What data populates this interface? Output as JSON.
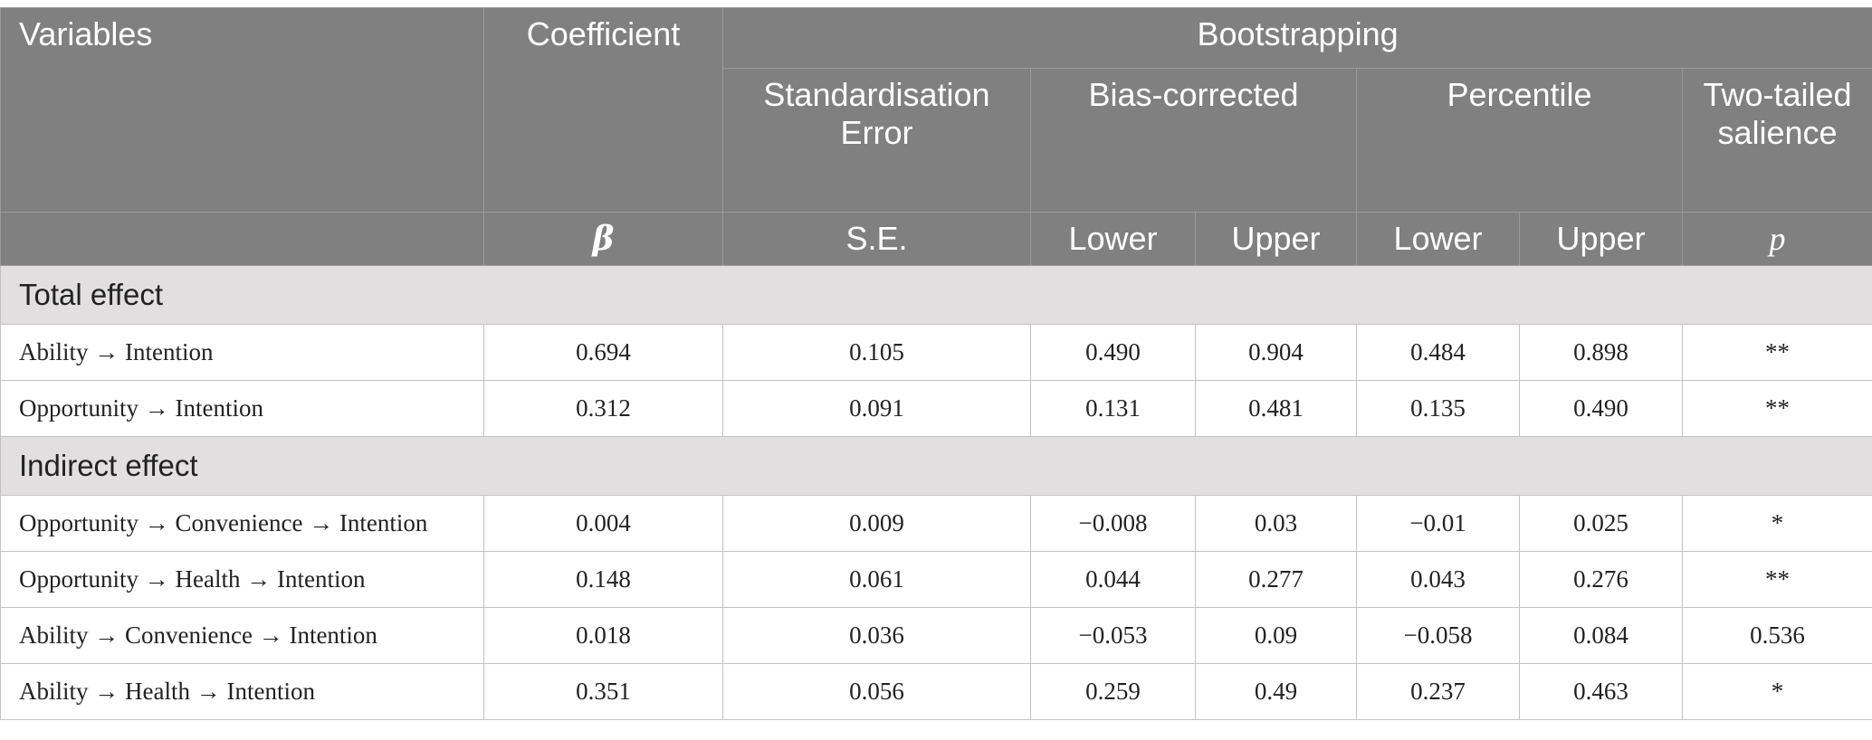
{
  "header": {
    "variables": "Variables",
    "coefficient": "Coefficient",
    "bootstrapping": "Bootstrapping",
    "std_error": "Standardisation Error",
    "bias_corrected": "Bias-corrected",
    "percentile": "Percentile",
    "two_tailed": "Two-tailed salience",
    "beta": "β",
    "se": "S.E.",
    "bc_lower": "Lower",
    "bc_upper": "Upper",
    "pc_lower": "Lower",
    "pc_upper": "Upper",
    "p": "p"
  },
  "sections": [
    {
      "title": "Total effect",
      "rows": [
        [
          "Ability → Intention",
          "0.694",
          "0.105",
          "0.490",
          "0.904",
          "0.484",
          "0.898",
          "**"
        ],
        [
          "Opportunity → Intention",
          "0.312",
          "0.091",
          "0.131",
          "0.481",
          "0.135",
          "0.490",
          "**"
        ]
      ]
    },
    {
      "title": "Indirect effect",
      "rows": [
        [
          "Opportunity → Convenience → Intention",
          "0.004",
          "0.009",
          "−0.008",
          "0.03",
          "−0.01",
          "0.025",
          "*"
        ],
        [
          "Opportunity → Health → Intention",
          "0.148",
          "0.061",
          "0.044",
          "0.277",
          "0.043",
          "0.276",
          "**"
        ],
        [
          "Ability → Convenience → Intention",
          "0.018",
          "0.036",
          "−0.053",
          "0.09",
          "−0.058",
          "0.084",
          "0.536"
        ],
        [
          "Ability → Health → Intention",
          "0.351",
          "0.056",
          "0.259",
          "0.49",
          "0.237",
          "0.463",
          "*"
        ]
      ]
    }
  ]
}
